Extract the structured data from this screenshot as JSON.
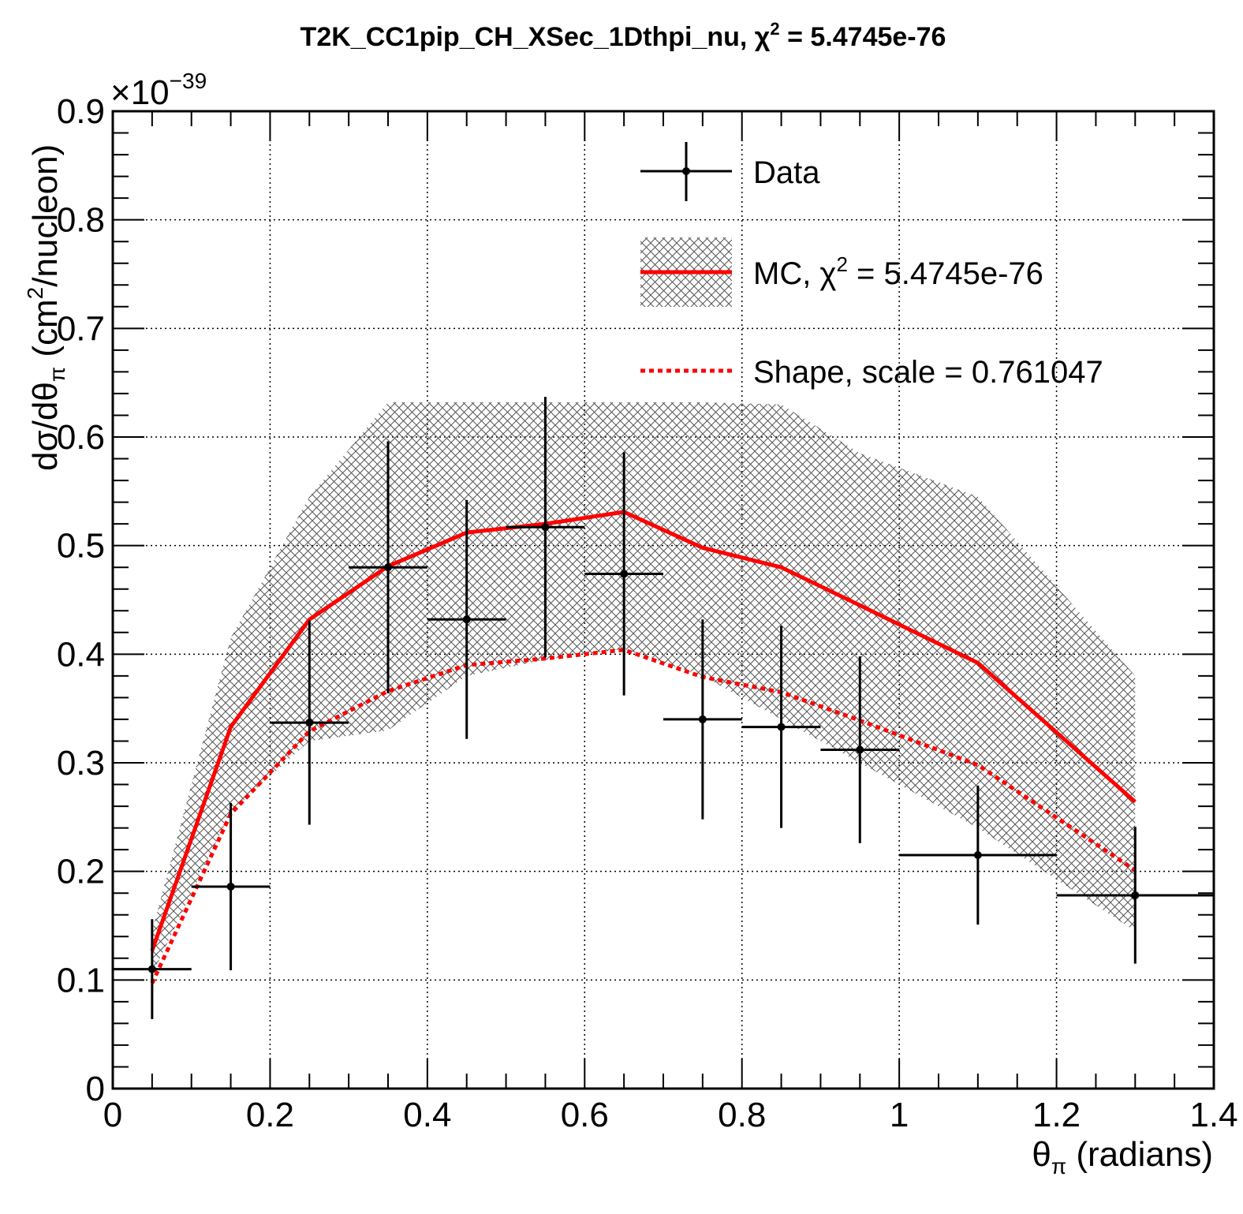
{
  "chart_data": {
    "type": "line",
    "title": "T2K_CC1pip_CH_XSec_1Dthpi_nu, χ² = 5.4745e-76",
    "title_main": "T2K_CC1pip_CH_XSec_1Dthpi_nu, χ",
    "title_sup": "2",
    "title_tail": " = 5.4745e-76",
    "xlabel": "θπ (radians)",
    "xlabel_parts": {
      "theta": "θ",
      "sub": "π",
      "rest": " (radians)"
    },
    "ylabel": "dσ/dθπ (cm²/nucleon)",
    "ylabel_parts": {
      "a": "dσ/dθ",
      "sub": "π",
      "b": " (cm",
      "sup": "2",
      "c": "/nucleon)"
    },
    "y_multiplier": {
      "base": "×10",
      "exp": "−39"
    },
    "xlim": [
      0,
      1.4
    ],
    "ylim": [
      0,
      0.9
    ],
    "x_ticks": [
      "0",
      "0.2",
      "0.4",
      "0.6",
      "0.8",
      "1",
      "1.2",
      "1.4"
    ],
    "y_ticks": [
      "0",
      "0.1",
      "0.2",
      "0.3",
      "0.4",
      "0.5",
      "0.6",
      "0.7",
      "0.8",
      "0.9"
    ],
    "grid": true,
    "legend_position": "top-right",
    "legend": {
      "data": "Data",
      "mc_main": "MC, χ",
      "mc_sup": "2",
      "mc_tail": " = 5.4745e-76",
      "shape": "Shape, scale = 0.761047"
    },
    "colors": {
      "data": "#000000",
      "mc": "#ff0000",
      "band": "#555555"
    },
    "series": [
      {
        "name": "Data",
        "x": [
          0.05,
          0.15,
          0.25,
          0.35,
          0.45,
          0.55,
          0.65,
          0.75,
          0.85,
          0.95,
          1.1,
          1.3
        ],
        "xerr": [
          0.05,
          0.05,
          0.05,
          0.05,
          0.05,
          0.05,
          0.05,
          0.05,
          0.05,
          0.05,
          0.1,
          0.1
        ],
        "values": [
          0.11,
          0.186,
          0.337,
          0.48,
          0.432,
          0.517,
          0.474,
          0.34,
          0.333,
          0.312,
          0.215,
          0.178
        ],
        "yerr": [
          0.046,
          0.077,
          0.094,
          0.116,
          0.11,
          0.12,
          0.112,
          0.092,
          0.093,
          0.086,
          0.064,
          0.063
        ]
      },
      {
        "name": "MC, χ² = 5.4745e-76",
        "x": [
          0.05,
          0.15,
          0.25,
          0.35,
          0.45,
          0.55,
          0.65,
          0.75,
          0.85,
          0.95,
          1.1,
          1.3
        ],
        "values": [
          0.127,
          0.333,
          0.432,
          0.481,
          0.512,
          0.52,
          0.531,
          0.498,
          0.48,
          0.445,
          0.392,
          0.264
        ],
        "band_low": [
          0.105,
          0.255,
          0.32,
          0.33,
          0.38,
          0.395,
          0.405,
          0.38,
          0.34,
          0.3,
          0.24,
          0.145
        ],
        "band_high": [
          0.145,
          0.415,
          0.545,
          0.632,
          0.632,
          0.632,
          0.632,
          0.632,
          0.63,
          0.585,
          0.545,
          0.38
        ]
      },
      {
        "name": "Shape, scale = 0.761047",
        "x": [
          0.05,
          0.15,
          0.25,
          0.35,
          0.45,
          0.55,
          0.65,
          0.75,
          0.85,
          0.95,
          1.1,
          1.3
        ],
        "values": [
          0.097,
          0.253,
          0.329,
          0.366,
          0.39,
          0.396,
          0.404,
          0.379,
          0.365,
          0.339,
          0.298,
          0.201
        ]
      }
    ]
  }
}
